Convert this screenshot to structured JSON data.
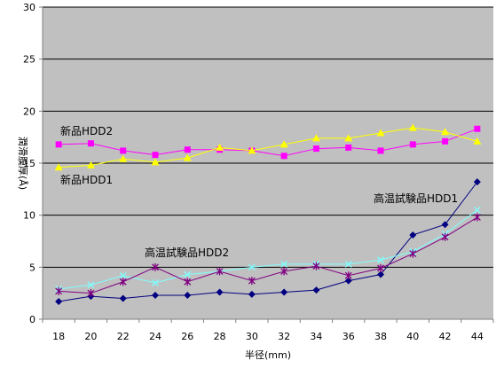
{
  "chart_data": {
    "type": "line",
    "x": [
      18,
      20,
      22,
      24,
      26,
      28,
      30,
      32,
      34,
      36,
      38,
      40,
      42,
      44
    ],
    "xlabel": "半径(mm)",
    "ylabel": "潤滑膜厚(Å)",
    "ylim": [
      0,
      30
    ],
    "yticks": [
      0,
      5,
      10,
      15,
      20,
      25,
      30
    ],
    "grid": true,
    "plot_background": "#c0c0c0",
    "series": [
      {
        "name": "新品HDD2",
        "color": "#ff00ff",
        "marker": "square",
        "values": [
          16.8,
          16.9,
          16.2,
          15.8,
          16.3,
          16.3,
          16.2,
          15.7,
          16.4,
          16.5,
          16.2,
          16.8,
          17.1,
          18.3
        ]
      },
      {
        "name": "新品HDD1",
        "color": "#ffff00",
        "marker": "triangle",
        "values": [
          14.6,
          14.8,
          15.4,
          15.1,
          15.5,
          16.5,
          16.2,
          16.8,
          17.4,
          17.4,
          17.9,
          18.4,
          18.0,
          17.1
        ]
      },
      {
        "name": "高温試験品HDD1",
        "color": "#000080",
        "marker": "diamond",
        "values": [
          1.7,
          2.2,
          2.0,
          2.3,
          2.3,
          2.6,
          2.4,
          2.6,
          2.8,
          3.7,
          4.3,
          8.1,
          9.1,
          13.2
        ]
      },
      {
        "name": "",
        "color": "#7fffff",
        "marker": "x",
        "values": [
          2.9,
          3.3,
          4.2,
          3.5,
          4.3,
          4.6,
          5.0,
          5.3,
          5.3,
          5.3,
          5.7,
          6.5,
          8.2,
          10.5
        ]
      },
      {
        "name": "高温試験品HDD2",
        "color": "#800080",
        "marker": "star",
        "values": [
          2.7,
          2.5,
          3.6,
          5.0,
          3.6,
          4.6,
          3.7,
          4.6,
          5.1,
          4.2,
          4.9,
          6.3,
          7.9,
          9.8
        ]
      }
    ],
    "annotations": [
      "新品HDD2",
      "新品HDD1",
      "高温試験品HDD1",
      "高温試験品HDD2"
    ]
  }
}
